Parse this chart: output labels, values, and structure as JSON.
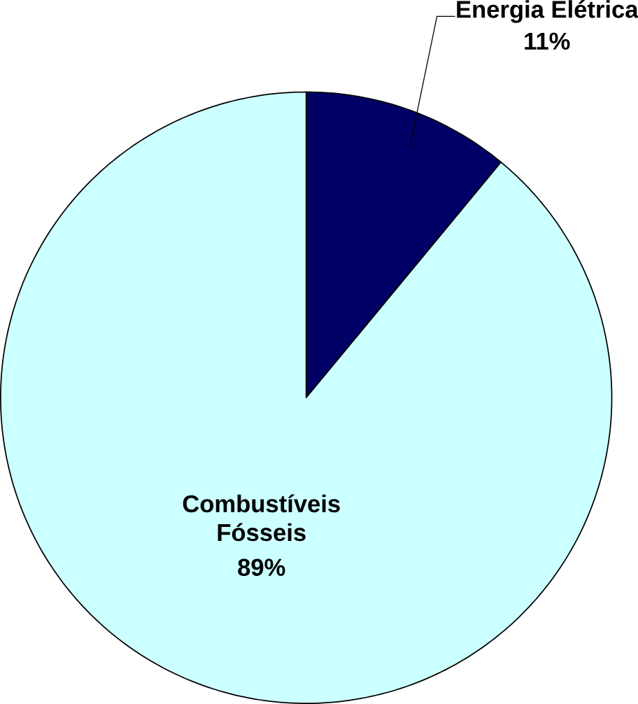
{
  "chart_data": {
    "type": "pie",
    "categories": [
      "Energia Elétrica",
      "Combustíveis Fósseis"
    ],
    "values": [
      11,
      89
    ],
    "colors": [
      "#000066",
      "#ccffff"
    ],
    "value_labels": [
      "11%",
      "89%"
    ]
  }
}
